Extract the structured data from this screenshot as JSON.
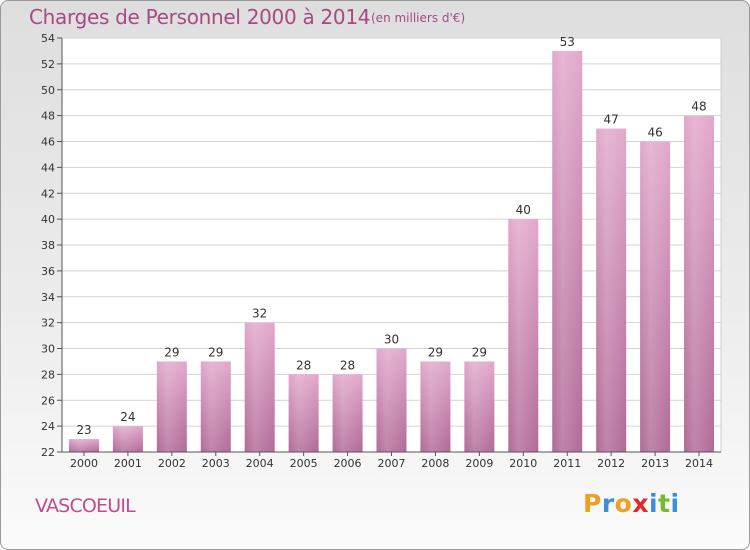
{
  "header": {
    "title": "Charges de Personnel 2000 à 2014",
    "subtitle": "(en milliers d'€)"
  },
  "footer": {
    "commune": "VASCOEUIL",
    "brand_letters": [
      {
        "ch": "P",
        "color": "#f0a020"
      },
      {
        "ch": "r",
        "color": "#3a8fd8"
      },
      {
        "ch": "o",
        "color": "#f0a020"
      },
      {
        "ch": "x",
        "color": "#e8262a"
      },
      {
        "ch": "i",
        "color": "#3a8fd8"
      },
      {
        "ch": "t",
        "color": "#7ab82e"
      },
      {
        "ch": "i",
        "color": "#3a8fd8"
      }
    ]
  },
  "chart_data": {
    "type": "bar",
    "title": "Charges de Personnel 2000 à 2014",
    "subtitle": "(en milliers d'€)",
    "categories": [
      "2000",
      "2001",
      "2002",
      "2003",
      "2004",
      "2005",
      "2006",
      "2007",
      "2008",
      "2009",
      "2010",
      "2011",
      "2012",
      "2013",
      "2014"
    ],
    "values": [
      23,
      24,
      29,
      29,
      32,
      28,
      28,
      30,
      29,
      29,
      40,
      53,
      47,
      46,
      48
    ],
    "ylim": [
      22,
      54
    ],
    "yticks": [
      22,
      24,
      26,
      28,
      30,
      32,
      34,
      36,
      38,
      40,
      42,
      44,
      46,
      48,
      50,
      52,
      54
    ],
    "grid": true,
    "bar_color": "#c3679d"
  }
}
